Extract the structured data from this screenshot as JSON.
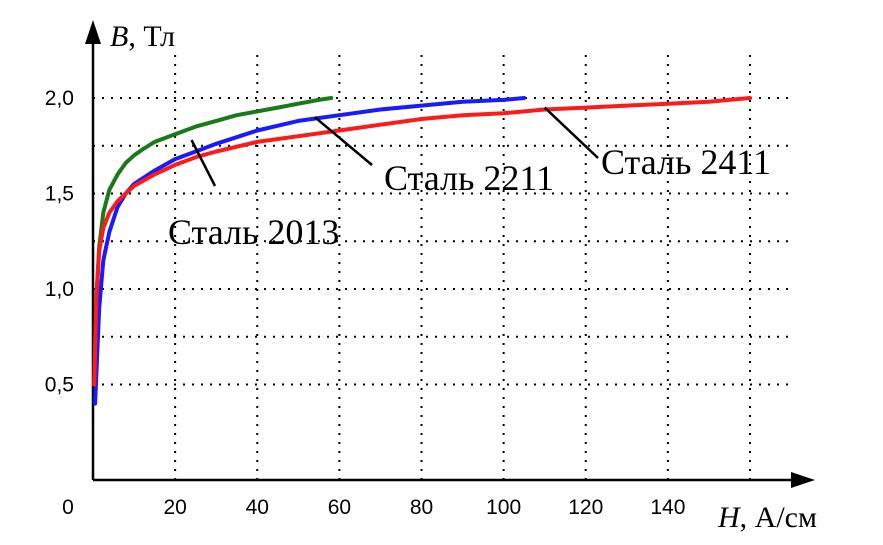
{
  "chart_data": {
    "type": "line",
    "xlabel_var": "H",
    "xlabel_unit": ", А/см",
    "ylabel_var": "B",
    "ylabel_unit": ", Тл",
    "xlim": [
      0,
      160
    ],
    "ylim": [
      0,
      2.3
    ],
    "x_ticks": [
      0,
      20,
      40,
      60,
      80,
      100,
      120,
      140
    ],
    "x_tick_labels": [
      "0",
      "20",
      "40",
      "60",
      "80",
      "100",
      "120",
      "140"
    ],
    "y_ticks": [
      0.5,
      1.0,
      1.5,
      2.0
    ],
    "y_tick_labels": [
      "0,5",
      "1,0",
      "1,5",
      "2,0"
    ],
    "grid_x": [
      20,
      40,
      60,
      80,
      100,
      120,
      140,
      160
    ],
    "grid_y": [
      0.5,
      0.75,
      1.0,
      1.25,
      1.5,
      1.75,
      2.0
    ],
    "grid": true,
    "series": [
      {
        "name": "Сталь 2013",
        "color": "#1a7a1a",
        "x": [
          0.3,
          0.8,
          1.5,
          2.5,
          4,
          6,
          8,
          10,
          12,
          15,
          20,
          25,
          30,
          35,
          40,
          45,
          50,
          55,
          58
        ],
        "y": [
          0.5,
          0.95,
          1.22,
          1.4,
          1.52,
          1.6,
          1.66,
          1.7,
          1.73,
          1.77,
          1.81,
          1.85,
          1.88,
          1.91,
          1.93,
          1.95,
          1.97,
          1.99,
          2.0
        ]
      },
      {
        "name": "Сталь 2211",
        "color": "#1a1aff",
        "x": [
          0.5,
          1.5,
          2.5,
          4,
          6,
          8,
          10,
          15,
          20,
          25,
          30,
          40,
          50,
          60,
          70,
          80,
          90,
          100,
          105
        ],
        "y": [
          0.4,
          0.9,
          1.15,
          1.3,
          1.43,
          1.5,
          1.55,
          1.62,
          1.68,
          1.72,
          1.76,
          1.83,
          1.88,
          1.91,
          1.94,
          1.96,
          1.98,
          1.99,
          2.0
        ]
      },
      {
        "name": "Сталь 2411",
        "color": "#ff1a1a",
        "x": [
          0.3,
          0.8,
          1.5,
          2.5,
          4,
          6,
          8,
          10,
          15,
          20,
          25,
          30,
          40,
          50,
          60,
          70,
          80,
          90,
          100,
          110,
          120,
          130,
          140,
          150,
          160
        ],
        "y": [
          0.5,
          0.95,
          1.2,
          1.32,
          1.4,
          1.46,
          1.5,
          1.54,
          1.6,
          1.65,
          1.69,
          1.72,
          1.77,
          1.8,
          1.83,
          1.86,
          1.89,
          1.91,
          1.92,
          1.94,
          1.95,
          1.96,
          1.97,
          1.98,
          2.0
        ]
      }
    ],
    "annotations": [
      {
        "text": "Сталь 2013",
        "target": [
          24,
          1.78
        ]
      },
      {
        "text": "Сталь 2211",
        "target": [
          54,
          1.9
        ]
      },
      {
        "text": "Сталь 2411",
        "target": [
          110,
          1.95
        ]
      }
    ]
  }
}
